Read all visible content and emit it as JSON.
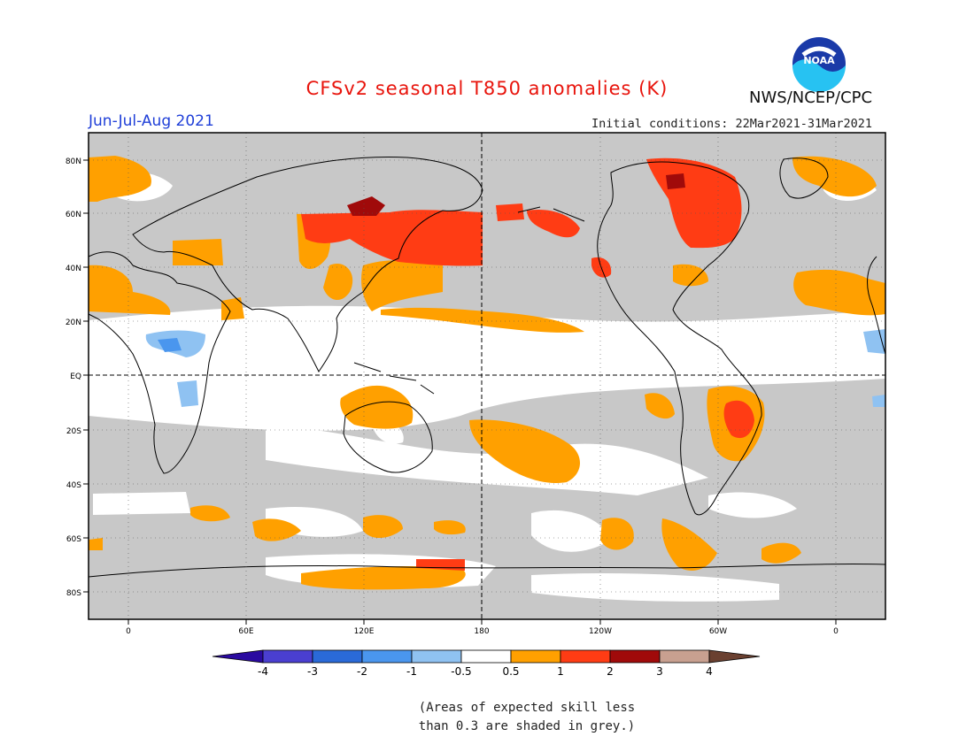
{
  "title": "CFSv2 seasonal T850 anomalies (K)",
  "season": "Jun-Jul-Aug 2021",
  "agency": "NWS/NCEP/CPC",
  "logo_text": "NOAA",
  "initial_conditions": "Initial conditions: 22Mar2021-31Mar2021",
  "note": {
    "line1": "(Areas of expected skill less",
    "line2": "than 0.3 are shaded in grey.)"
  },
  "axes": {
    "lat_labels": [
      "80N",
      "60N",
      "40N",
      "20N",
      "EQ",
      "20S",
      "40S",
      "60S",
      "80S"
    ],
    "lon_labels": [
      "0",
      "60E",
      "120E",
      "180",
      "120W",
      "60W",
      "0"
    ]
  },
  "legend": {
    "labels": [
      "-4",
      "-3",
      "-2",
      "-1",
      "-0.5",
      "0.5",
      "1",
      "2",
      "3",
      "4"
    ],
    "colors": [
      "#2a0aa0",
      "#4a3fd0",
      "#2a6ad8",
      "#4a96ee",
      "#8fc2f2",
      "#ffffff",
      "#ffa000",
      "#ff3c14",
      "#a00a0a",
      "#c8a090",
      "#6a4030"
    ]
  },
  "colors": {
    "grey": "#c8c8c8",
    "white": "#ffffff",
    "orange": "#ffa000",
    "red": "#ff3c14",
    "darkred": "#a00a0a",
    "lightblue": "#8fc2f2",
    "blue": "#4a96ee"
  }
}
